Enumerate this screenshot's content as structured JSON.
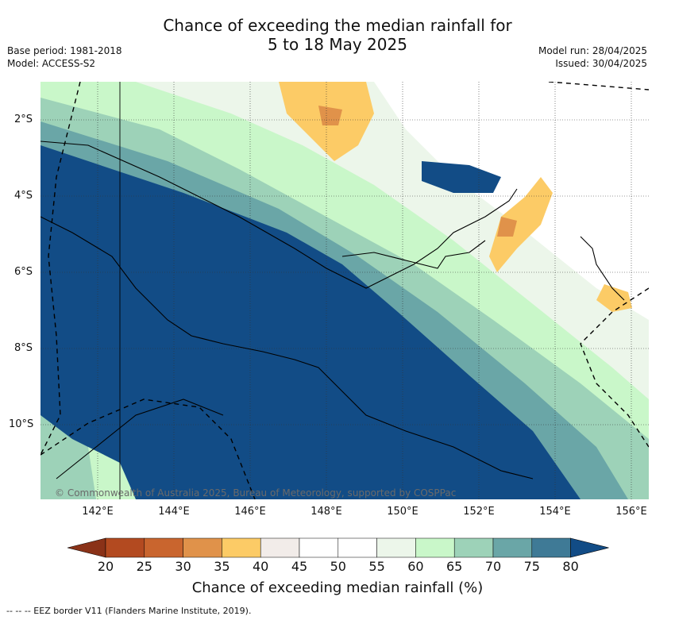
{
  "title_line1": "Chance of exceeding the median rainfall for",
  "title_line2": "5 to 18 May 2025",
  "base_period": "Base period: 1981-2018",
  "model": "Model: ACCESS-S2",
  "model_run": "Model run: 28/04/2025",
  "issued": "Issued: 30/04/2025",
  "lat_labels": [
    "2°S",
    "4°S",
    "6°S",
    "8°S",
    "10°S"
  ],
  "lon_labels": [
    "142°E",
    "144°E",
    "146°E",
    "148°E",
    "150°E",
    "152°E",
    "154°E",
    "156°E"
  ],
  "colorbar": {
    "ticks": [
      "20",
      "25",
      "30",
      "35",
      "40",
      "45",
      "50",
      "55",
      "60",
      "65",
      "70",
      "75",
      "80"
    ],
    "colors": [
      "#b34a20",
      "#c9652e",
      "#e0924a",
      "#fccb66",
      "#f2ece9",
      "#ffffff",
      "#ffffff",
      "#ecf6ea",
      "#c9f7c9",
      "#9dd2b8",
      "#6aa6a7",
      "#3f7a96",
      "#124c86"
    ],
    "label": "Chance of exceeding median rainfall (%)"
  },
  "copyright": "© Commonwealth of Australia 2025, Bureau of Meteorology, supported by COSPPac",
  "eez_note": "--  --  -- EEZ border V11 (Flanders Marine Institute, 2019)."
}
